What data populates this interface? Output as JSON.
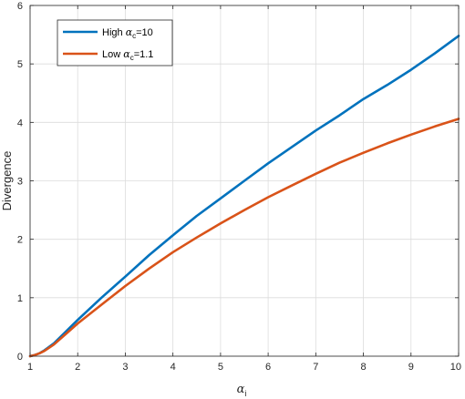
{
  "chart_data": {
    "type": "line",
    "xlabel": {
      "symbol": "α",
      "subscript": "i"
    },
    "ylabel": "Divergence",
    "xlim": [
      1,
      10
    ],
    "ylim": [
      0,
      6
    ],
    "xticks": [
      "1",
      "2",
      "3",
      "4",
      "5",
      "6",
      "7",
      "8",
      "9",
      "10"
    ],
    "yticks": [
      "0",
      "1",
      "2",
      "3",
      "4",
      "5",
      "6"
    ],
    "grid": true,
    "legend_position": "top-left",
    "series": [
      {
        "name": {
          "prefix": "High ",
          "symbol": "α",
          "subscript": "c",
          "suffix": "=10"
        },
        "color": "#0072BD",
        "x": [
          1.0,
          1.1,
          1.2,
          1.3,
          1.5,
          1.75,
          2.0,
          2.5,
          3.0,
          3.5,
          4.0,
          4.5,
          5.0,
          5.5,
          6.0,
          6.5,
          7.0,
          7.5,
          8.0,
          8.5,
          9.0,
          9.5,
          10.0
        ],
        "y": [
          0.0,
          0.02,
          0.05,
          0.1,
          0.22,
          0.42,
          0.62,
          1.0,
          1.36,
          1.73,
          2.07,
          2.4,
          2.7,
          3.0,
          3.3,
          3.58,
          3.86,
          4.12,
          4.4,
          4.64,
          4.9,
          5.18,
          5.48
        ]
      },
      {
        "name": {
          "prefix": "Low ",
          "symbol": "α",
          "subscript": "c",
          "suffix": "=1.1"
        },
        "color": "#D95319",
        "x": [
          1.0,
          1.1,
          1.2,
          1.3,
          1.5,
          1.75,
          2.0,
          2.5,
          3.0,
          3.5,
          4.0,
          4.5,
          5.0,
          5.5,
          6.0,
          6.5,
          7.0,
          7.5,
          8.0,
          8.5,
          9.0,
          9.5,
          10.0
        ],
        "y": [
          0.0,
          0.02,
          0.05,
          0.09,
          0.2,
          0.38,
          0.56,
          0.88,
          1.2,
          1.5,
          1.78,
          2.03,
          2.27,
          2.5,
          2.72,
          2.92,
          3.12,
          3.31,
          3.48,
          3.64,
          3.79,
          3.93,
          4.06
        ]
      }
    ]
  }
}
